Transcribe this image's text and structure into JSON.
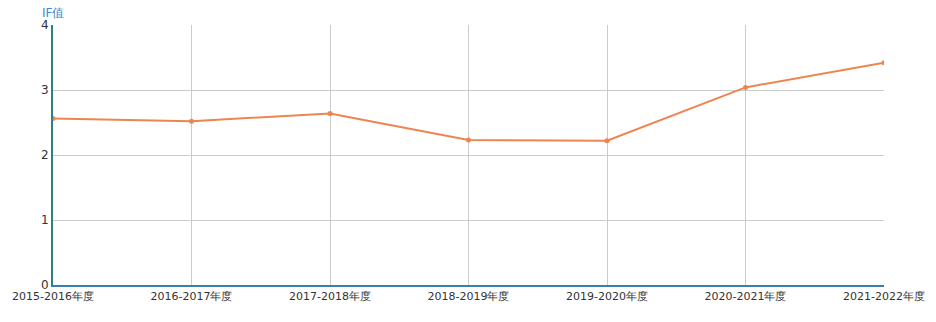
{
  "chart_data": {
    "type": "line",
    "y_label": "IF值",
    "categories": [
      "2015-2016年度",
      "2016-2017年度",
      "2017-2018年度",
      "2018-2019年度",
      "2019-2020年度",
      "2020-2021年度",
      "2021-2022年度"
    ],
    "values": [
      2.56,
      2.52,
      2.64,
      2.23,
      2.22,
      3.04,
      3.42
    ],
    "color": "#ee8450",
    "marker": "circle",
    "ylim": [
      0,
      4
    ],
    "yticks": [
      0,
      1,
      2,
      3,
      4
    ],
    "grid": true
  }
}
